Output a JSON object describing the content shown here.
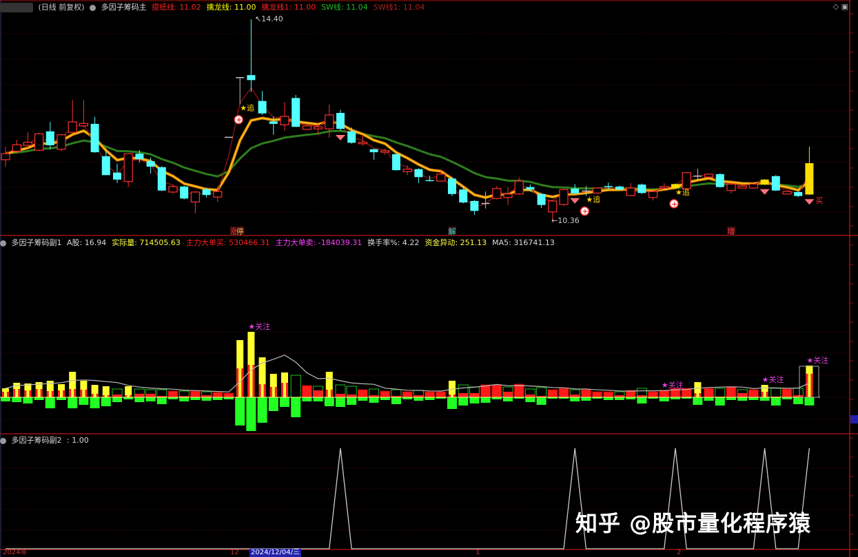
{
  "main": {
    "period": "(日线 前复权)",
    "indicator": "多因子筹码主",
    "values": [
      {
        "label": "提纸线",
        "value": "11.02",
        "color": "#ff2020"
      },
      {
        "label": "擒龙线",
        "value": "11.00",
        "color": "#ffff00"
      },
      {
        "label": "擒龙线1",
        "value": "11.00",
        "color": "#ff2020"
      },
      {
        "label": "SW线",
        "value": "11.04",
        "color": "#22bb22"
      },
      {
        "label": "SW线1",
        "value": "11.04",
        "color": "#aa2222"
      }
    ],
    "high_label": "14.40",
    "low_label": "10.36",
    "chase_label": "追",
    "buy_label": "买",
    "events": [
      {
        "index": 20,
        "label": "涨",
        "color": "#ff3030"
      },
      {
        "index": 21,
        "label": "停",
        "color": "#ffaa55"
      },
      {
        "index": 40,
        "label": "解",
        "color": "#33dddd"
      },
      {
        "index": 65,
        "label": "增",
        "color": "#ff3030"
      }
    ],
    "chase_signals": [
      21,
      52,
      60
    ],
    "diamond_signals": [
      30,
      51,
      68,
      72
    ],
    "candles_ohlc": [
      [
        11.58,
        11.7,
        11.84,
        11.44
      ],
      [
        11.75,
        11.88,
        11.98,
        11.7
      ],
      [
        11.87,
        11.93,
        12.13,
        11.81
      ],
      [
        11.77,
        12.1,
        12.12,
        11.75
      ],
      [
        12.15,
        11.87,
        12.34,
        11.79
      ],
      [
        11.79,
        12.08,
        12.1,
        11.75
      ],
      [
        12.13,
        12.34,
        12.78,
        12.13
      ],
      [
        12.26,
        12.31,
        12.78,
        12.23
      ],
      [
        12.3,
        11.73,
        12.44,
        11.72
      ],
      [
        11.65,
        11.27,
        11.75,
        11.27
      ],
      [
        11.32,
        11.18,
        11.5,
        11.11
      ],
      [
        11.14,
        11.7,
        11.71,
        11.03
      ],
      [
        11.7,
        11.59,
        11.77,
        11.52
      ],
      [
        11.55,
        11.44,
        11.63,
        11.3
      ],
      [
        11.43,
        10.96,
        11.45,
        10.95
      ],
      [
        10.93,
        11.04,
        11.08,
        10.89
      ],
      [
        11.04,
        10.8,
        11.06,
        10.78
      ],
      [
        10.73,
        10.93,
        10.95,
        10.5
      ],
      [
        10.98,
        10.87,
        11.01,
        10.82
      ],
      [
        10.83,
        10.94,
        11.03,
        10.73
      ],
      [
        12.04,
        12.04,
        12.04,
        12.04
      ],
      [
        13.24,
        13.24,
        13.24,
        12.69
      ],
      [
        13.28,
        13.18,
        14.4,
        12.94
      ],
      [
        12.76,
        12.51,
        12.96,
        12.48
      ],
      [
        12.35,
        12.3,
        12.45,
        12.08
      ],
      [
        12.28,
        12.45,
        12.74,
        12.16
      ],
      [
        12.82,
        12.24,
        12.88,
        12.24
      ],
      [
        12.19,
        12.26,
        12.27,
        12.18
      ],
      [
        12.2,
        12.24,
        12.3,
        12.09
      ],
      [
        12.2,
        12.48,
        12.69,
        12.02
      ],
      [
        12.52,
        12.2,
        12.58,
        12.16
      ],
      [
        12.15,
        11.92,
        12.23,
        11.9
      ],
      [
        11.9,
        11.93,
        12.08,
        11.86
      ],
      [
        11.79,
        11.73,
        11.8,
        11.58
      ],
      [
        11.73,
        11.76,
        11.8,
        11.68
      ],
      [
        11.69,
        11.37,
        11.71,
        11.36
      ],
      [
        11.34,
        11.39,
        11.47,
        11.27
      ],
      [
        11.39,
        11.23,
        11.41,
        11.11
      ],
      [
        11.17,
        11.16,
        11.26,
        11.14
      ],
      [
        11.15,
        11.29,
        11.36,
        11.14
      ],
      [
        11.2,
        10.89,
        11.23,
        10.85
      ],
      [
        10.98,
        10.72,
        11.05,
        10.7
      ],
      [
        10.75,
        10.55,
        10.77,
        10.47
      ],
      [
        10.71,
        10.71,
        10.94,
        10.6
      ],
      [
        10.8,
        11.0,
        11.05,
        10.78
      ],
      [
        10.82,
        10.89,
        11.03,
        10.67
      ],
      [
        10.89,
        11.15,
        11.22,
        10.87
      ],
      [
        11.03,
        10.98,
        11.08,
        10.94
      ],
      [
        10.89,
        10.67,
        10.91,
        10.61
      ],
      [
        10.53,
        10.75,
        10.77,
        10.36
      ],
      [
        10.68,
        10.98,
        11.0,
        10.65
      ],
      [
        11.0,
        10.9,
        11.09,
        10.89
      ],
      [
        10.96,
        10.96,
        11.05,
        10.85
      ],
      [
        10.91,
        11.01,
        11.02,
        10.9
      ],
      [
        11.05,
        11.03,
        11.12,
        10.98
      ],
      [
        11.04,
        10.98,
        11.06,
        10.97
      ],
      [
        10.86,
        11.01,
        11.11,
        10.85
      ],
      [
        11.08,
        10.91,
        11.1,
        10.89
      ],
      [
        10.82,
        10.94,
        10.95,
        10.76
      ],
      [
        11.01,
        11.04,
        11.11,
        11.0
      ],
      [
        11.01,
        11.09,
        11.1,
        11.0
      ],
      [
        11.0,
        11.32,
        11.33,
        10.99
      ],
      [
        11.26,
        11.26,
        11.4,
        11.15
      ],
      [
        11.23,
        11.29,
        11.3,
        11.22
      ],
      [
        11.29,
        11.03,
        11.31,
        11.02
      ],
      [
        10.96,
        11.09,
        11.1,
        10.9
      ],
      [
        11.01,
        11.05,
        11.06,
        11.0
      ],
      [
        11.01,
        11.09,
        11.1,
        11.0
      ],
      [
        11.08,
        11.18,
        11.19,
        11.07
      ],
      [
        11.25,
        10.96,
        11.27,
        10.95
      ],
      [
        10.89,
        10.94,
        10.95,
        10.88
      ],
      [
        10.93,
        10.85,
        10.94,
        10.83
      ],
      [
        10.88,
        11.51,
        11.84,
        10.87
      ]
    ],
    "yellow_candles": [
      60,
      68,
      72
    ],
    "colors": {
      "up": "#ff3030",
      "down": "#54ffff",
      "flat": "#c0c0c0",
      "signal": "#ffdd00"
    }
  },
  "sub1": {
    "indicator": "多因子筹码副1",
    "values": [
      {
        "label": "A股",
        "value": "16.94",
        "color": "#dddddd"
      },
      {
        "label": "实际量",
        "value": "714505.63",
        "color": "#ffff40"
      },
      {
        "label": "主力大单买",
        "value": "530466.31",
        "color": "#ff2020"
      },
      {
        "label": "主力大单卖",
        "value": "-184039.31",
        "color": "#ff40ff"
      },
      {
        "label": "换手率%",
        "value": "4.22",
        "color": "#dddddd"
      },
      {
        "label": "资金异动",
        "value": "251.13",
        "color": "#ffff40"
      },
      {
        "label": "MA5",
        "value": "316741.13",
        "color": "#dddddd"
      }
    ],
    "focus_label": "关注",
    "focus_signals": [
      22,
      59,
      68,
      72
    ],
    "volume_wan": [
      20.2,
      32.6,
      31.0,
      34.1,
      37.2,
      29.5,
      57.4,
      37.2,
      27.9,
      24.8,
      18.6,
      24.8,
      18.6,
      17.1,
      17.1,
      14.0,
      14.0,
      14.0,
      12.4,
      10.9,
      9.3,
      128.7,
      147.3,
      89.9,
      52.7,
      55.8,
      49.6,
      26.4,
      24.8,
      57.4,
      27.9,
      24.8,
      17.1,
      18.6,
      14.0,
      17.1,
      12.4,
      15.5,
      12.4,
      12.4,
      37.2,
      27.9,
      23.3,
      27.9,
      27.9,
      23.3,
      29.5,
      18.6,
      21.7,
      17.1,
      20.2,
      17.1,
      17.1,
      12.4,
      12.4,
      12.4,
      15.5,
      20.2,
      12.4,
      15.5,
      20.2,
      20.2,
      34.1,
      20.2,
      20.2,
      23.3,
      17.1,
      17.1,
      27.9,
      20.2,
      18.6,
      20.2,
      71.5
    ],
    "big_buy_wan": [
      12.4,
      18.6,
      15.5,
      18.6,
      14.0,
      15.5,
      18.6,
      17.1,
      7.8,
      4.7,
      6.2,
      4.7,
      7.8,
      7.8,
      3.1,
      10.9,
      3.1,
      10.9,
      4.7,
      9.3,
      7.8,
      65.1,
      72.9,
      29.5,
      23.3,
      32.6,
      0,
      15.5,
      15.5,
      17.1,
      7.8,
      6.2,
      9.3,
      4.7,
      9.3,
      3.1,
      7.8,
      4.7,
      9.3,
      10.9,
      6.2,
      9.3,
      9.3,
      15.5,
      27.9,
      12.4,
      29.5,
      6.2,
      3.1,
      14.0,
      20.2,
      6.2,
      12.4,
      12.4,
      9.3,
      4.7,
      15.5,
      4.7,
      12.4,
      14.0,
      20.2,
      20.2,
      9.3,
      15.5,
      1.6,
      23.3,
      9.3,
      14.0,
      12.4,
      1.6,
      18.6,
      4.7,
      53.0
    ],
    "big_sell_wan": [
      -9.3,
      -10.9,
      -14.0,
      -6.2,
      -24.8,
      -6.2,
      -24.8,
      -17.1,
      -24.8,
      -20.2,
      -10.9,
      -4.7,
      -10.9,
      -9.3,
      -15.5,
      -4.7,
      -9.3,
      -6.2,
      -7.8,
      -6.2,
      -4.7,
      -63.6,
      -76.0,
      -57.4,
      -31.0,
      -21.7,
      -45.0,
      -9.3,
      -9.3,
      -20.2,
      -21.7,
      -17.1,
      -7.8,
      -12.4,
      -6.2,
      -15.5,
      -4.7,
      -7.8,
      -6.2,
      -3.1,
      -26.4,
      -18.6,
      -14.0,
      -12.4,
      -4.7,
      -9.3,
      -3.1,
      -10.9,
      -17.1,
      -3.1,
      -3.1,
      -9.3,
      -7.8,
      -3.1,
      -6.2,
      -6.2,
      -4.7,
      -14.0,
      -3.1,
      -9.3,
      -4.7,
      -3.1,
      -17.1,
      -7.8,
      -18.6,
      -6.2,
      -7.8,
      -6.2,
      -7.8,
      -18.6,
      -4.7,
      -15.5,
      -18.4
    ],
    "bar_style": "YYYYYYYYYYGYGGGRGRGRRYYYYYGRGYGGRGRGRGRRYGGRRGRGGRRGRRRGRGRRRRYRGRGRYGRGY"
  },
  "sub2": {
    "indicator": "多因子筹码副2",
    "value": ": 1.00",
    "signal": [
      0,
      0,
      0,
      0,
      0,
      0,
      0,
      0,
      0,
      0,
      0,
      0,
      0,
      0,
      0,
      0,
      0,
      0,
      0,
      0,
      0,
      0,
      0,
      0,
      0,
      0,
      0,
      0,
      0,
      0,
      1,
      0,
      0,
      0,
      0,
      0,
      0,
      0,
      0,
      0,
      0,
      0,
      0,
      0,
      0,
      0,
      0,
      0,
      0,
      0,
      0,
      1,
      0,
      0,
      0,
      0,
      0,
      0,
      0,
      0,
      1,
      0,
      0,
      0,
      0,
      0,
      0,
      0,
      1,
      0,
      0,
      0,
      1
    ]
  },
  "time_axis": {
    "year": "2024年",
    "labels": [
      {
        "text": "12",
        "index": 20
      },
      {
        "text": "1",
        "index": 42
      },
      {
        "text": "2",
        "index": 60
      }
    ],
    "cursor_date": "2024/12/04/三"
  },
  "watermark": "知乎 @股市量化程序猿"
}
